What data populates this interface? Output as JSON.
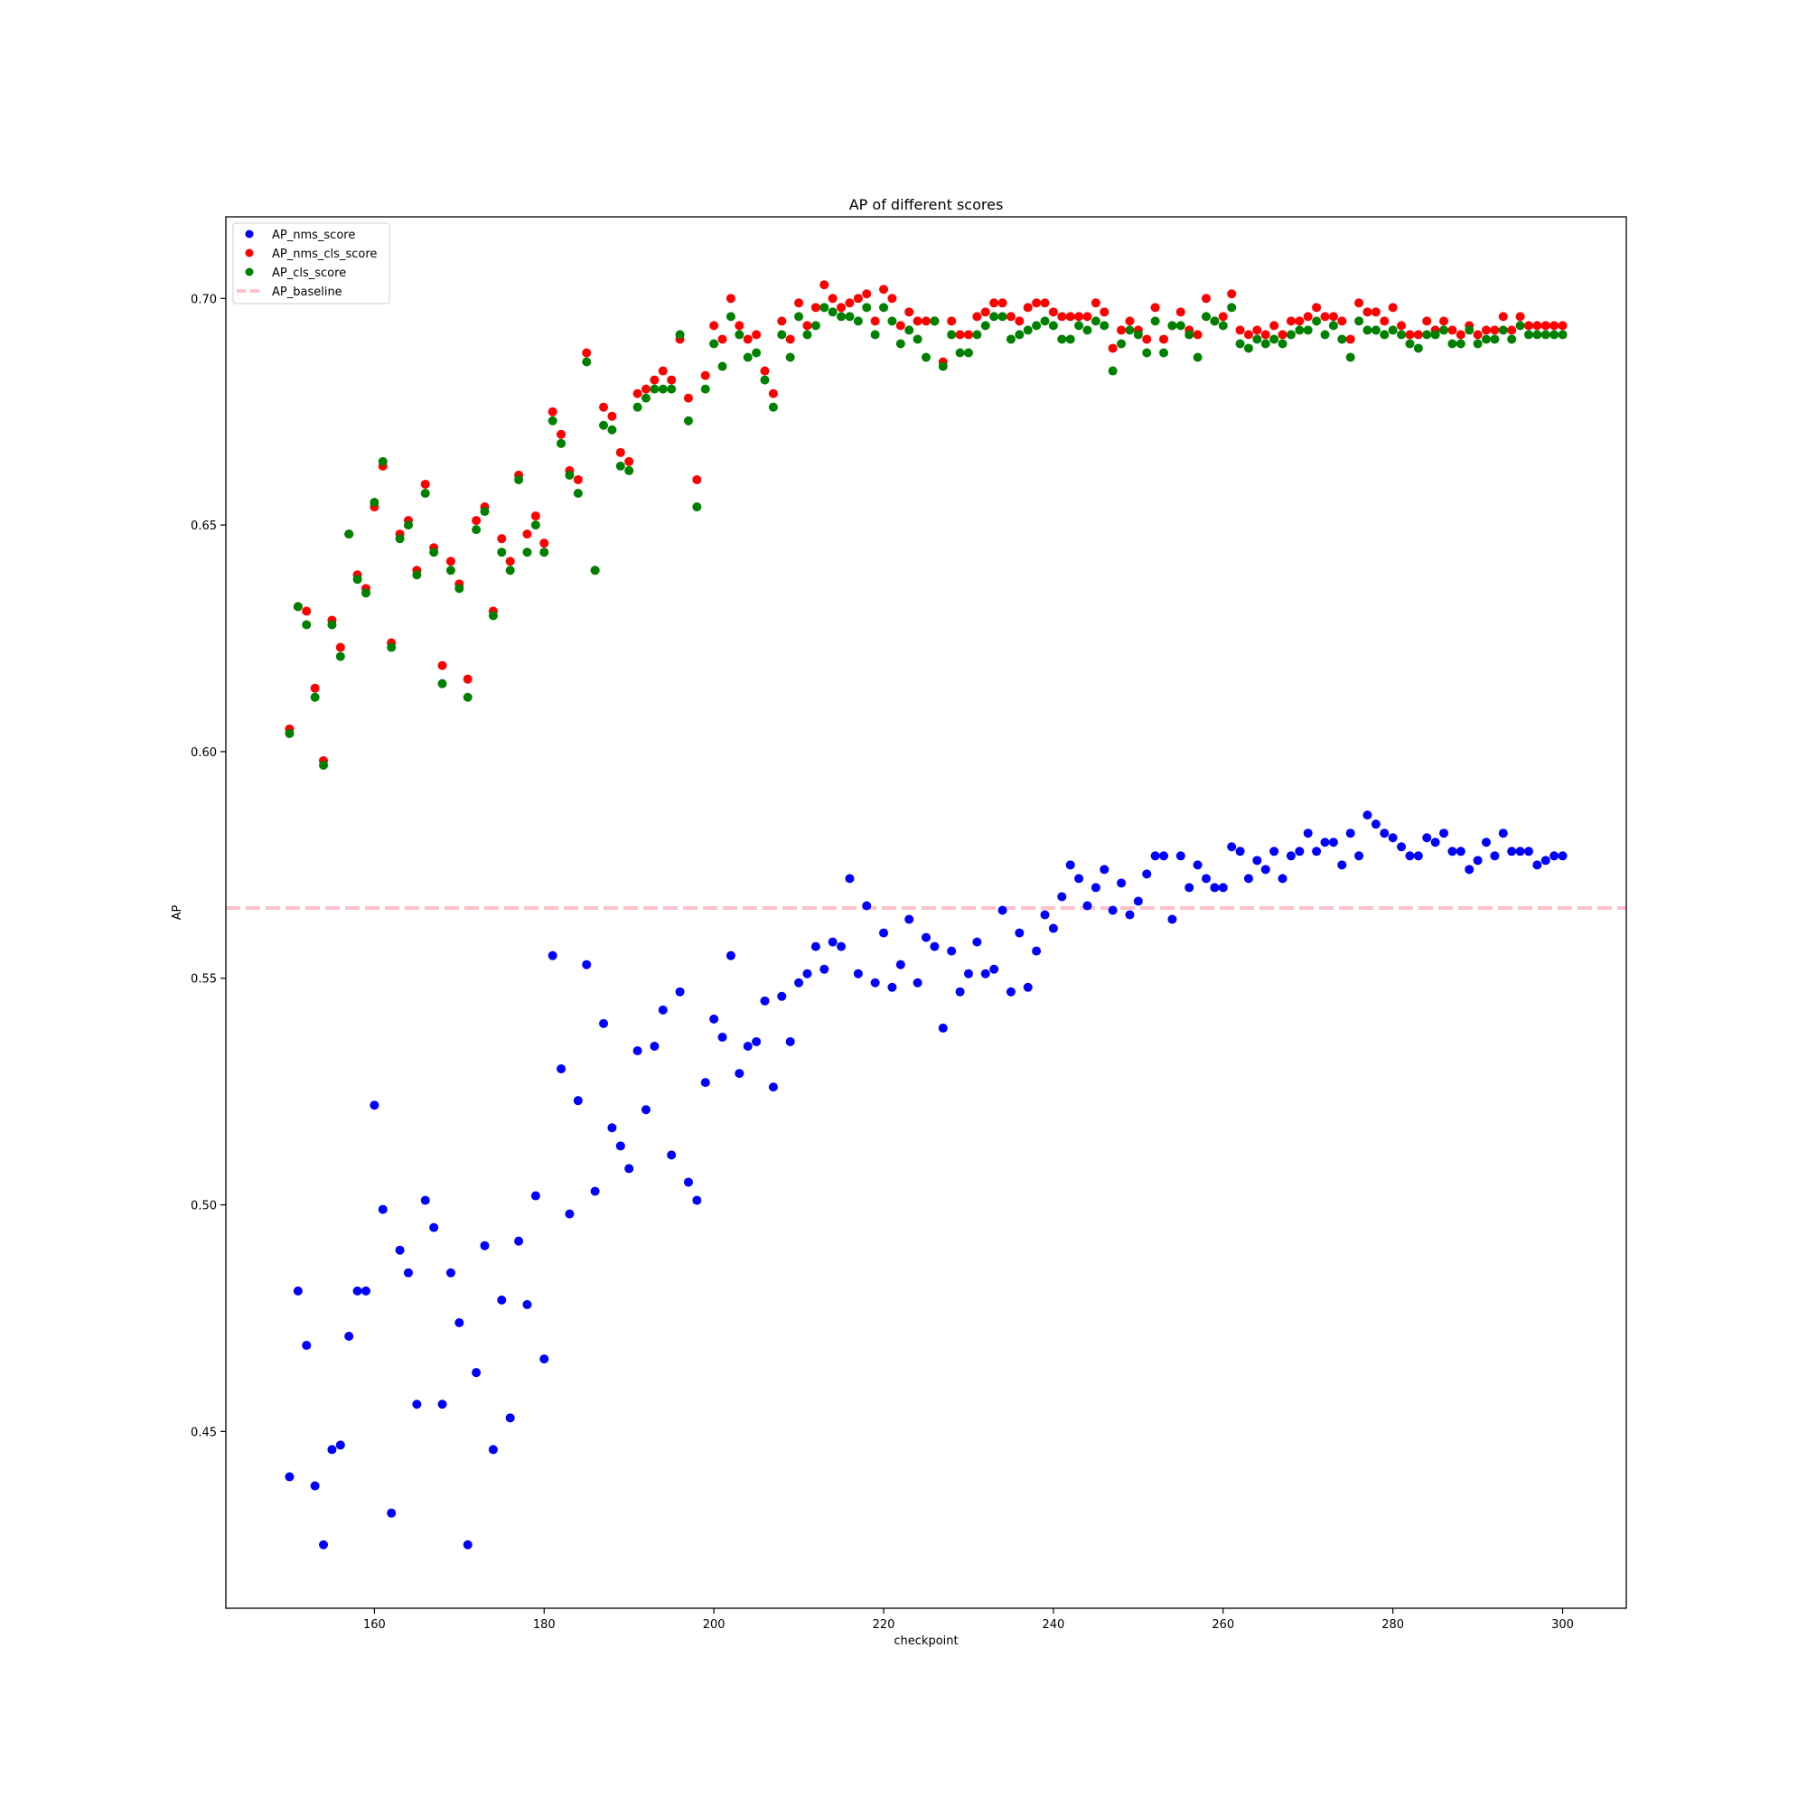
{
  "chart_data": {
    "type": "scatter",
    "title": "AP of different scores",
    "xlabel": "checkpoint",
    "ylabel": "AP",
    "xlim": [
      142.5,
      307.5
    ],
    "ylim": [
      0.411,
      0.718
    ],
    "xticks": [
      160,
      180,
      200,
      220,
      240,
      260,
      280,
      300
    ],
    "yticks": [
      0.45,
      0.5,
      0.55,
      0.6,
      0.65,
      0.7
    ],
    "xtick_labels": [
      "160",
      "180",
      "200",
      "220",
      "240",
      "260",
      "280",
      "300"
    ],
    "ytick_labels": [
      "0.45",
      "0.50",
      "0.55",
      "0.60",
      "0.65",
      "0.70"
    ],
    "grid": false,
    "legend_position": "upper left",
    "x": [
      150,
      151,
      152,
      153,
      154,
      155,
      156,
      157,
      158,
      159,
      160,
      161,
      162,
      163,
      164,
      165,
      166,
      167,
      168,
      169,
      170,
      171,
      172,
      173,
      174,
      175,
      176,
      177,
      178,
      179,
      180,
      181,
      182,
      183,
      184,
      185,
      186,
      187,
      188,
      189,
      190,
      191,
      192,
      193,
      194,
      195,
      196,
      197,
      198,
      199,
      200,
      201,
      202,
      203,
      204,
      205,
      206,
      207,
      208,
      209,
      210,
      211,
      212,
      213,
      214,
      215,
      216,
      217,
      218,
      219,
      220,
      221,
      222,
      223,
      224,
      225,
      226,
      227,
      228,
      229,
      230,
      231,
      232,
      233,
      234,
      235,
      236,
      237,
      238,
      239,
      240,
      241,
      242,
      243,
      244,
      245,
      246,
      247,
      248,
      249,
      250,
      251,
      252,
      253,
      254,
      255,
      256,
      257,
      258,
      259,
      260,
      261,
      262,
      263,
      264,
      265,
      266,
      267,
      268,
      269,
      270,
      271,
      272,
      273,
      274,
      275,
      276,
      277,
      278,
      279,
      280,
      281,
      282,
      283,
      284,
      285,
      286,
      287,
      288,
      289,
      290,
      291,
      292,
      293,
      294,
      295,
      296,
      297,
      298,
      299,
      300
    ],
    "series": [
      {
        "name": "AP_nms_score",
        "color": "#0000ff",
        "values": [
          0.44,
          0.481,
          0.469,
          0.438,
          0.425,
          0.446,
          0.447,
          0.471,
          0.481,
          0.481,
          0.522,
          0.499,
          0.432,
          0.49,
          0.485,
          0.456,
          0.501,
          0.495,
          0.456,
          0.485,
          0.474,
          0.425,
          0.463,
          0.491,
          0.446,
          0.479,
          0.453,
          0.492,
          0.478,
          0.502,
          0.466,
          0.555,
          0.53,
          0.498,
          0.523,
          0.553,
          0.503,
          0.54,
          0.517,
          0.513,
          0.508,
          0.534,
          0.521,
          0.535,
          0.543,
          0.511,
          0.547,
          0.505,
          0.501,
          0.527,
          0.541,
          0.537,
          0.555,
          0.529,
          0.535,
          0.536,
          0.545,
          0.526,
          0.546,
          0.536,
          0.549,
          0.551,
          0.557,
          0.552,
          0.558,
          0.557,
          0.572,
          0.551,
          0.566,
          0.549,
          0.56,
          0.548,
          0.553,
          0.563,
          0.549,
          0.559,
          0.557,
          0.539,
          0.556,
          0.547,
          0.551,
          0.558,
          0.551,
          0.552,
          0.565,
          0.547,
          0.56,
          0.548,
          0.556,
          0.564,
          0.561,
          0.568,
          0.575,
          0.572,
          0.566,
          0.57,
          0.574,
          0.565,
          0.571,
          0.564,
          0.567,
          0.573,
          0.577,
          0.577,
          0.563,
          0.577,
          0.57,
          0.575,
          0.572,
          0.57,
          0.57,
          0.579,
          0.578,
          0.572,
          0.576,
          0.574,
          0.578,
          0.572,
          0.577,
          0.578,
          0.582,
          0.578,
          0.58,
          0.58,
          0.575,
          0.582,
          0.577,
          0.586,
          0.584,
          0.582,
          0.581,
          0.579,
          0.577,
          0.577,
          0.581,
          0.58,
          0.582,
          0.578,
          0.578,
          0.574,
          0.576,
          0.58,
          0.577,
          0.582,
          0.578,
          0.578,
          0.578,
          0.575,
          0.576,
          0.577,
          0.577
        ]
      },
      {
        "name": "AP_nms_cls_score",
        "color": "#ff0000",
        "values": [
          0.605,
          0.632,
          0.631,
          0.614,
          0.598,
          0.629,
          0.623,
          0.648,
          0.639,
          0.636,
          0.654,
          0.663,
          0.624,
          0.648,
          0.651,
          0.64,
          0.659,
          0.645,
          0.619,
          0.642,
          0.637,
          0.616,
          0.651,
          0.654,
          0.631,
          0.647,
          0.642,
          0.661,
          0.648,
          0.652,
          0.646,
          0.675,
          0.67,
          0.662,
          0.66,
          0.688,
          0.64,
          0.676,
          0.674,
          0.666,
          0.664,
          0.679,
          0.68,
          0.682,
          0.684,
          0.682,
          0.691,
          0.678,
          0.66,
          0.683,
          0.694,
          0.691,
          0.7,
          0.694,
          0.691,
          0.692,
          0.684,
          0.679,
          0.695,
          0.691,
          0.699,
          0.694,
          0.698,
          0.703,
          0.7,
          0.698,
          0.699,
          0.7,
          0.701,
          0.695,
          0.702,
          0.7,
          0.694,
          0.697,
          0.695,
          0.695,
          0.695,
          0.686,
          0.695,
          0.692,
          0.692,
          0.696,
          0.697,
          0.699,
          0.699,
          0.696,
          0.695,
          0.698,
          0.699,
          0.699,
          0.697,
          0.696,
          0.696,
          0.696,
          0.696,
          0.699,
          0.697,
          0.689,
          0.693,
          0.695,
          0.693,
          0.691,
          0.698,
          0.691,
          0.694,
          0.697,
          0.693,
          0.692,
          0.7,
          0.695,
          0.696,
          0.701,
          0.693,
          0.692,
          0.693,
          0.692,
          0.694,
          0.692,
          0.695,
          0.695,
          0.696,
          0.698,
          0.696,
          0.696,
          0.695,
          0.691,
          0.699,
          0.697,
          0.697,
          0.695,
          0.698,
          0.694,
          0.692,
          0.692,
          0.695,
          0.693,
          0.695,
          0.693,
          0.692,
          0.694,
          0.692,
          0.693,
          0.693,
          0.696,
          0.693,
          0.696,
          0.694,
          0.694,
          0.694,
          0.694,
          0.694
        ]
      },
      {
        "name": "AP_cls_score",
        "color": "#008000",
        "values": [
          0.604,
          0.632,
          0.628,
          0.612,
          0.597,
          0.628,
          0.621,
          0.648,
          0.638,
          0.635,
          0.655,
          0.664,
          0.623,
          0.647,
          0.65,
          0.639,
          0.657,
          0.644,
          0.615,
          0.64,
          0.636,
          0.612,
          0.649,
          0.653,
          0.63,
          0.644,
          0.64,
          0.66,
          0.644,
          0.65,
          0.644,
          0.673,
          0.668,
          0.661,
          0.657,
          0.686,
          0.64,
          0.672,
          0.671,
          0.663,
          0.662,
          0.676,
          0.678,
          0.68,
          0.68,
          0.68,
          0.692,
          0.673,
          0.654,
          0.68,
          0.69,
          0.685,
          0.696,
          0.692,
          0.687,
          0.688,
          0.682,
          0.676,
          0.692,
          0.687,
          0.696,
          0.692,
          0.694,
          0.698,
          0.697,
          0.696,
          0.696,
          0.695,
          0.698,
          0.692,
          0.698,
          0.695,
          0.69,
          0.693,
          0.691,
          0.687,
          0.695,
          0.685,
          0.692,
          0.688,
          0.688,
          0.692,
          0.694,
          0.696,
          0.696,
          0.691,
          0.692,
          0.693,
          0.694,
          0.695,
          0.694,
          0.691,
          0.691,
          0.694,
          0.693,
          0.695,
          0.694,
          0.684,
          0.69,
          0.693,
          0.692,
          0.688,
          0.695,
          0.688,
          0.694,
          0.694,
          0.692,
          0.687,
          0.696,
          0.695,
          0.694,
          0.698,
          0.69,
          0.689,
          0.691,
          0.69,
          0.691,
          0.69,
          0.692,
          0.693,
          0.693,
          0.695,
          0.692,
          0.694,
          0.691,
          0.687,
          0.695,
          0.693,
          0.693,
          0.692,
          0.693,
          0.692,
          0.69,
          0.689,
          0.692,
          0.692,
          0.693,
          0.69,
          0.69,
          0.693,
          0.69,
          0.691,
          0.691,
          0.693,
          0.691,
          0.694,
          0.692,
          0.692,
          0.692,
          0.692,
          0.692
        ]
      }
    ],
    "baseline": {
      "name": "AP_baseline",
      "y": 0.5655,
      "color": "#ffc0cb",
      "style": "dashed"
    }
  }
}
